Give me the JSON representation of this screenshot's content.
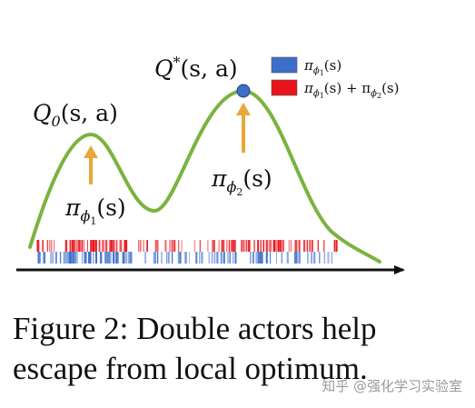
{
  "labels": {
    "q0_main": "Q",
    "q0_sub": "0",
    "q0_args": "(s, a)",
    "qstar_main": "Q",
    "qstar_sup": "*",
    "qstar_args": "(s, a)",
    "pi1_main": "π",
    "pi1_sub": "ϕ",
    "pi1_subsub": "1",
    "pi1_args": "(s)",
    "pi2_main": "π",
    "pi2_sub": "ϕ",
    "pi2_subsub": "2",
    "pi2_args": "(s)"
  },
  "legend": {
    "blue_label": "π_{ϕ1}(s)",
    "red_label": "π_{ϕ1}(s) + π_{ϕ2}(s)",
    "blue_color": "#3d6fc9",
    "red_color": "#e8141c"
  },
  "colors": {
    "curve": "#7bb33e",
    "arrow": "#e8a838",
    "optimum_dot": "#3d6fc9",
    "axis": "#111111"
  },
  "caption": {
    "line1": "Figure 2: Double actors help",
    "line2": "escape from local optimum."
  },
  "watermark": "知乎 @强化学习实验室"
}
